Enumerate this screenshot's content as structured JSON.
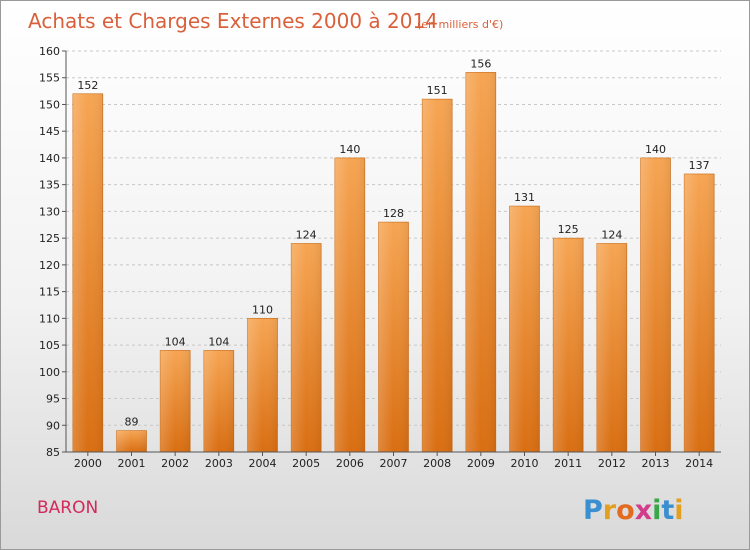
{
  "chart_data": {
    "type": "bar",
    "title": "Achats et Charges Externes 2000 à 2014",
    "subtitle": "(en milliers d'€)",
    "categories": [
      "2000",
      "2001",
      "2002",
      "2003",
      "2004",
      "2005",
      "2006",
      "2007",
      "2008",
      "2009",
      "2010",
      "2011",
      "2012",
      "2013",
      "2014"
    ],
    "values": [
      152,
      89,
      104,
      104,
      110,
      124,
      140,
      128,
      151,
      156,
      131,
      125,
      124,
      140,
      137
    ],
    "ylim": [
      85,
      160
    ],
    "yticks": [
      85,
      90,
      95,
      100,
      105,
      110,
      115,
      120,
      125,
      130,
      135,
      140,
      145,
      150,
      155,
      160
    ],
    "grid": true,
    "bar_color": "#f0922f"
  },
  "commune": "BARON",
  "logo": {
    "letters": [
      {
        "char": "P",
        "color": "#3a8fd0"
      },
      {
        "char": "r",
        "color": "#e3a020"
      },
      {
        "char": "o",
        "color": "#e36a1f"
      },
      {
        "char": "x",
        "color": "#d23c8a"
      },
      {
        "char": "i",
        "color": "#3aa64a"
      },
      {
        "char": "t",
        "color": "#3a8fd0"
      },
      {
        "char": "i",
        "color": "#e3a020"
      }
    ]
  }
}
